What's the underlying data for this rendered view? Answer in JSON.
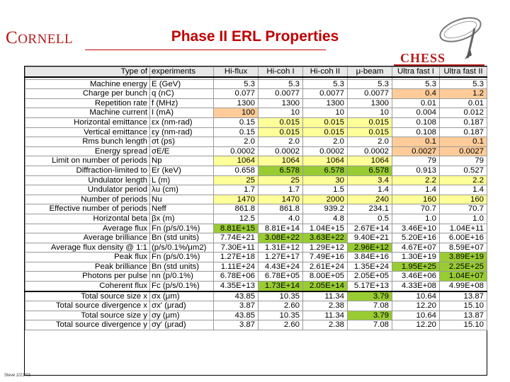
{
  "header": {
    "logo_c": "C",
    "logo_rest": "ORNELL",
    "title": "Phase II ERL Properties",
    "chess": "CHESS",
    "footer": "Steve 2/21/03"
  },
  "table": {
    "columns": [
      "Type of experiments",
      "Hi-flux",
      "Hi-coh I",
      "Hi-coh II",
      "μ-beam",
      "Ultra fast I",
      "Ultra fast II"
    ],
    "rows": [
      {
        "label": "Machine energy",
        "sym": "E (GeV)",
        "values": [
          "5.3",
          "5.3",
          "5.3",
          "5.3",
          "5.3",
          "5.3"
        ],
        "cls": [
          "",
          "",
          "",
          "",
          "",
          ""
        ]
      },
      {
        "label": "Charge per bunch",
        "sym": "q (nC)",
        "values": [
          "0.077",
          "0.0077",
          "0.0077",
          "0.0077",
          "0.4",
          "1.2"
        ],
        "cls": [
          "",
          "",
          "",
          "",
          "o",
          "o"
        ]
      },
      {
        "label": "Repetition rate",
        "sym": "f (MHz)",
        "values": [
          "1300",
          "1300",
          "1300",
          "1300",
          "0.01",
          "0.01"
        ],
        "cls": [
          "",
          "",
          "",
          "",
          "",
          ""
        ]
      },
      {
        "label": "Machine current",
        "sym": "I (mA)",
        "values": [
          "100",
          "10",
          "10",
          "10",
          "0.004",
          "0.012"
        ],
        "cls": [
          "o",
          "",
          "",
          "",
          "",
          ""
        ]
      },
      {
        "label": "Horizontal emittance",
        "sym": "εx (nm-rad)",
        "values": [
          "0.15",
          "0.015",
          "0.015",
          "0.015",
          "0.108",
          "0.187"
        ],
        "cls": [
          "",
          "y",
          "y",
          "y",
          "",
          ""
        ]
      },
      {
        "label": "Vertical emittance",
        "sym": "εy (nm-rad)",
        "values": [
          "0.15",
          "0.015",
          "0.015",
          "0.015",
          "0.108",
          "0.187"
        ],
        "cls": [
          "",
          "y",
          "y",
          "y",
          "",
          ""
        ]
      },
      {
        "label": "Rms bunch length",
        "sym": "σt (ps)",
        "values": [
          "2.0",
          "2.0",
          "2.0",
          "2.0",
          "0.1",
          "0.1"
        ],
        "cls": [
          "",
          "",
          "",
          "",
          "o",
          "o"
        ]
      },
      {
        "label": "Energy spread",
        "sym": "σE/E",
        "values": [
          "0.0002",
          "0.0002",
          "0.0002",
          "0.0002",
          "0.0027",
          "0.0027"
        ],
        "cls": [
          "",
          "",
          "",
          "",
          "o",
          "o"
        ]
      },
      {
        "label": "Limit on number of periods",
        "sym": "Np",
        "values": [
          "1064",
          "1064",
          "1064",
          "1064",
          "79",
          "79"
        ],
        "cls": [
          "y",
          "y",
          "y",
          "y",
          "",
          ""
        ]
      },
      {
        "label": "Diffraction-limited to",
        "sym": "Er (keV)",
        "values": [
          "0.658",
          "6.578",
          "6.578",
          "6.578",
          "0.913",
          "0.527"
        ],
        "cls": [
          "",
          "g",
          "g",
          "g",
          "",
          ""
        ]
      },
      {
        "label": "Undulator length",
        "sym": "L (m)",
        "values": [
          "25",
          "25",
          "30",
          "3.4",
          "2.2",
          "2.2"
        ],
        "cls": [
          "y",
          "y",
          "y",
          "y",
          "y",
          "y"
        ]
      },
      {
        "label": "Undulator period",
        "sym": "λu (cm)",
        "values": [
          "1.7",
          "1.7",
          "1.5",
          "1.4",
          "1.4",
          "1.4"
        ],
        "cls": [
          "",
          "",
          "",
          "",
          "",
          ""
        ]
      },
      {
        "label": "Number of periods",
        "sym": "Nu",
        "values": [
          "1470",
          "1470",
          "2000",
          "240",
          "160",
          "160"
        ],
        "cls": [
          "y",
          "y",
          "y",
          "y",
          "y",
          "y"
        ]
      },
      {
        "label": "Effective number of periods",
        "sym": "Neff",
        "values": [
          "861.8",
          "861.8",
          "939.2",
          "234.1",
          "70.7",
          "70.7"
        ],
        "cls": [
          "",
          "",
          "",
          "",
          "",
          ""
        ]
      },
      {
        "label": "Horizontal beta",
        "sym": "βx (m)",
        "values": [
          "12.5",
          "4.0",
          "4.8",
          "0.5",
          "1.0",
          "1.0"
        ],
        "cls": [
          "",
          "",
          "",
          "",
          "",
          ""
        ]
      },
      {
        "label": "Average flux",
        "sym": "Fn (p/s/0.1%)",
        "values": [
          "8.81E+15",
          "8.81E+14",
          "1.04E+15",
          "2.67E+14",
          "3.46E+10",
          "1.04E+11"
        ],
        "cls": [
          "g",
          "",
          "",
          "",
          "",
          ""
        ]
      },
      {
        "label": "Average brilliance",
        "sym": "Bn (std units)",
        "values": [
          "7.74E+21",
          "3.08E+22",
          "3.63E+22",
          "9.40E+21",
          "5.20E+16",
          "6.00E+16"
        ],
        "cls": [
          "",
          "g",
          "g",
          "",
          "",
          ""
        ]
      },
      {
        "label": "Average flux density @ 1:1",
        "sym": "(p/s/0.1%/μm2)",
        "values": [
          "7.30E+11",
          "1.31E+12",
          "1.29E+12",
          "2.96E+12",
          "4.67E+07",
          "8.59E+07"
        ],
        "cls": [
          "",
          "",
          "",
          "g",
          "",
          ""
        ]
      },
      {
        "label": "Peak flux",
        "sym": "Fn (p/s/0.1%)",
        "values": [
          "1.27E+18",
          "1.27E+17",
          "7.49E+16",
          "3.84E+16",
          "1.30E+19",
          "3.89E+19"
        ],
        "cls": [
          "",
          "",
          "",
          "",
          "",
          "g"
        ]
      },
      {
        "label": "Peak brilliance",
        "sym": "Bn (std units)",
        "values": [
          "1.11E+24",
          "4.43E+24",
          "2.61E+24",
          "1.35E+24",
          "1.95E+25",
          "2.25E+25"
        ],
        "cls": [
          "",
          "",
          "",
          "",
          "g",
          "g"
        ]
      },
      {
        "label": "Photons per pulse",
        "sym": "nn (p/0.1%)",
        "values": [
          "6.78E+06",
          "6.78E+05",
          "8.00E+05",
          "2.05E+05",
          "3.46E+06",
          "1.04E+07"
        ],
        "cls": [
          "",
          "",
          "",
          "",
          "",
          "g"
        ]
      },
      {
        "label": "Coherent flux",
        "sym": "Fc (p/s/0.1%)",
        "values": [
          "4.35E+13",
          "1.73E+14",
          "2.05E+14",
          "5.17E+13",
          "4.33E+08",
          "4.99E+08"
        ],
        "cls": [
          "",
          "g",
          "g",
          "",
          "",
          ""
        ]
      }
    ],
    "source_rows": [
      {
        "label": "Total source size x",
        "sym": "σx (μm)",
        "values": [
          "43.85",
          "10.35",
          "11.34",
          "3.79",
          "10.64",
          "13.87"
        ],
        "cls": [
          "",
          "",
          "",
          "g",
          "",
          ""
        ]
      },
      {
        "label": "Total source divergence x",
        "sym": "σx' (μrad)",
        "values": [
          "3.87",
          "2.60",
          "2.38",
          "7.08",
          "12.20",
          "15.10"
        ],
        "cls": [
          "",
          "",
          "",
          "",
          "",
          ""
        ]
      },
      {
        "label": "Total source size y",
        "sym": "σy (μm)",
        "values": [
          "43.85",
          "10.35",
          "11.34",
          "3.79",
          "10.64",
          "13.87"
        ],
        "cls": [
          "",
          "",
          "",
          "g",
          "",
          ""
        ]
      },
      {
        "label": "Total source divergence y",
        "sym": "σy' (μrad)",
        "values": [
          "3.87",
          "2.60",
          "2.38",
          "7.08",
          "12.20",
          "15.10"
        ],
        "cls": [
          "",
          "",
          "",
          "",
          "",
          ""
        ]
      }
    ]
  }
}
